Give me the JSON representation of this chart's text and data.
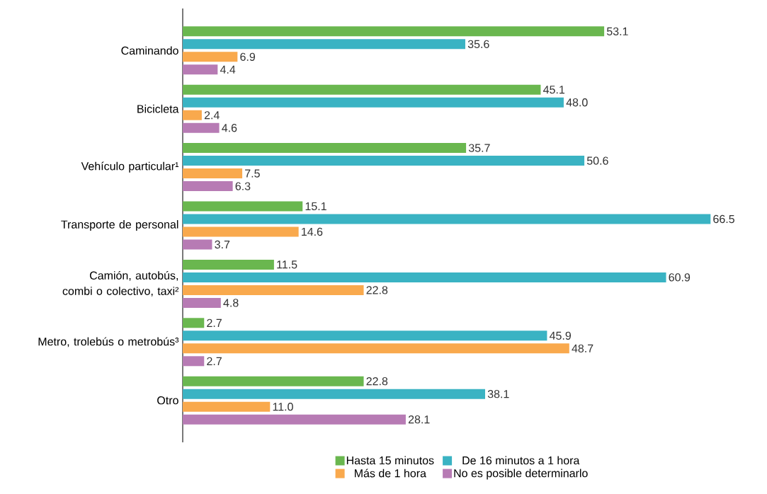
{
  "chart_data": {
    "type": "bar",
    "orientation": "horizontal",
    "legend": "bottom",
    "categories": [
      "Caminando",
      "Bicicleta",
      "Vehículo particular¹",
      "Transporte de personal",
      "Camión, autobús, combi o colectivo, taxi²",
      "Metro, trolebús o metrobús³",
      "Otro"
    ],
    "series": [
      {
        "name": "Hasta 15 minutos",
        "color": "#6ab74f",
        "values": [
          53.1,
          45.1,
          35.7,
          15.1,
          11.5,
          2.7,
          22.8
        ],
        "value_labels": [
          "53.1",
          "45.1",
          "35.7",
          "15.1",
          "11.5",
          "2.7",
          "22.8"
        ]
      },
      {
        "name": "De 16 minutos a 1 hora",
        "color": "#3ab3c3",
        "values": [
          35.6,
          48.0,
          50.6,
          66.5,
          60.9,
          45.9,
          38.1
        ],
        "value_labels": [
          "35.6",
          "48.0",
          "50.6",
          "66.5",
          "60.9",
          "45.9",
          "38.1"
        ]
      },
      {
        "name": "Más de 1 hora",
        "color": "#f9a94d",
        "values": [
          6.9,
          2.4,
          7.5,
          14.6,
          22.8,
          48.7,
          11.0
        ],
        "value_labels": [
          "6.9",
          "2.4",
          "7.5",
          "14.6",
          "22.8",
          "48.7",
          "11.0"
        ]
      },
      {
        "name": "No es posible determinarlo",
        "color": "#b77bb4",
        "values": [
          4.4,
          4.6,
          6.3,
          3.7,
          4.8,
          2.7,
          28.1
        ],
        "value_labels": [
          "4.4",
          "4.6",
          "6.3",
          "3.7",
          "4.8",
          "2.7",
          "28.1"
        ]
      }
    ]
  }
}
